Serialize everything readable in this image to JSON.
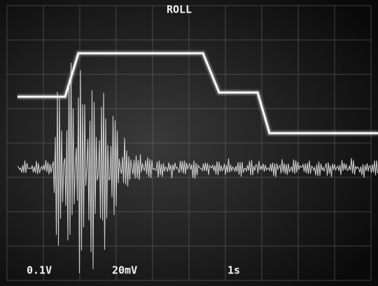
{
  "header": {
    "mode": "ROLL"
  },
  "readouts": {
    "channel1": "0.1V",
    "channel2": "20mV",
    "timebase": "1s"
  }
}
